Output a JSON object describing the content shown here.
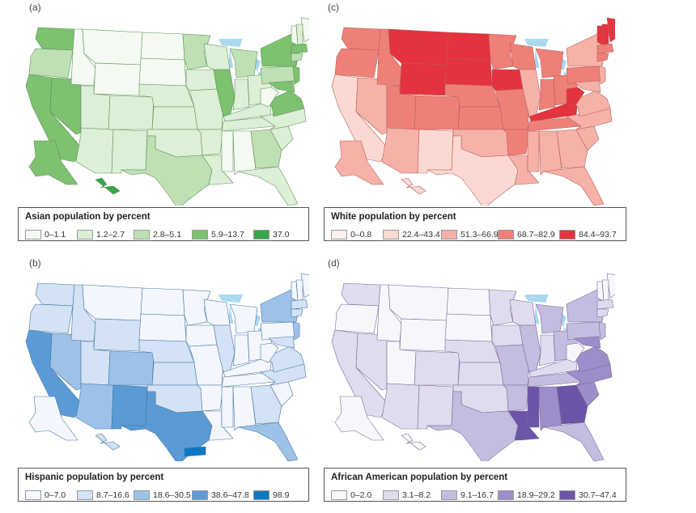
{
  "panels": [
    {
      "letter": "(a)",
      "legend_title": "Asian population by percent",
      "classes": [
        {
          "label": "0–1.1",
          "color": "#f4f9f2"
        },
        {
          "label": "1.2–2.7",
          "color": "#dcefd7"
        },
        {
          "label": "2.8–5.1",
          "color": "#bfe0b4"
        },
        {
          "label": "5.9–13.7",
          "color": "#7dc171"
        },
        {
          "label": "37.0",
          "color": "#38a54a"
        }
      ],
      "states": {
        "WA": 3,
        "OR": 2,
        "CA": 3,
        "NV": 3,
        "ID": 0,
        "MT": 0,
        "WY": 0,
        "UT": 1,
        "AZ": 1,
        "NM": 1,
        "CO": 1,
        "ND": 0,
        "SD": 0,
        "NE": 1,
        "KS": 1,
        "OK": 1,
        "TX": 2,
        "MN": 2,
        "IA": 1,
        "MO": 1,
        "AR": 1,
        "LA": 1,
        "WI": 1,
        "IL": 3,
        "MI": 2,
        "IN": 1,
        "OH": 1,
        "KY": 1,
        "TN": 1,
        "MS": 0,
        "AL": 0,
        "GA": 2,
        "FL": 1,
        "SC": 1,
        "NC": 1,
        "VA": 3,
        "WV": 0,
        "PA": 2,
        "NY": 3,
        "ME": 0,
        "NH": 1,
        "VT": 0,
        "MA": 3,
        "CT": 2,
        "NJ": 3,
        "MD": 3,
        "AK": 3,
        "HI": 4
      }
    },
    {
      "letter": "(c)",
      "legend_title": "White population by percent",
      "classes": [
        {
          "label": "0–0.8",
          "color": "#fdf0ec"
        },
        {
          "label": "22.4–43.4",
          "color": "#fbd9d2"
        },
        {
          "label": "51.3–66.9",
          "color": "#f6b1a8"
        },
        {
          "label": "68.7–82.9",
          "color": "#ef8078"
        },
        {
          "label": "84.4–93.7",
          "color": "#e4323f"
        }
      ],
      "states": {
        "WA": 3,
        "OR": 3,
        "CA": 1,
        "NV": 2,
        "ID": 3,
        "MT": 4,
        "WY": 4,
        "UT": 3,
        "AZ": 2,
        "NM": 1,
        "CO": 3,
        "ND": 4,
        "SD": 4,
        "NE": 3,
        "KS": 3,
        "OK": 2,
        "TX": 1,
        "MN": 3,
        "IA": 4,
        "MO": 3,
        "AR": 3,
        "LA": 2,
        "WI": 3,
        "IL": 2,
        "MI": 3,
        "IN": 3,
        "OH": 3,
        "KY": 4,
        "TN": 3,
        "MS": 2,
        "AL": 2,
        "GA": 2,
        "FL": 2,
        "SC": 2,
        "NC": 2,
        "VA": 2,
        "WV": 4,
        "PA": 3,
        "NY": 2,
        "ME": 4,
        "NH": 4,
        "VT": 4,
        "MA": 3,
        "CT": 3,
        "NJ": 2,
        "MD": 2,
        "AK": 2,
        "HI": 1
      }
    },
    {
      "letter": "(b)",
      "legend_title": "Hispanic population by percent",
      "classes": [
        {
          "label": "0–7.0",
          "color": "#f3f6fc"
        },
        {
          "label": "8.7–16.6",
          "color": "#d3e2f4"
        },
        {
          "label": "18.6–30.5",
          "color": "#9dc2e8"
        },
        {
          "label": "38.6–47.8",
          "color": "#5b9bd5"
        },
        {
          "label": "98.9",
          "color": "#0a78c2"
        }
      ],
      "states": {
        "WA": 1,
        "OR": 1,
        "CA": 3,
        "NV": 2,
        "ID": 1,
        "MT": 0,
        "WY": 1,
        "UT": 1,
        "AZ": 2,
        "NM": 3,
        "CO": 2,
        "ND": 0,
        "SD": 0,
        "NE": 1,
        "KS": 1,
        "OK": 1,
        "TX": 3,
        "MN": 0,
        "IA": 0,
        "MO": 0,
        "AR": 0,
        "LA": 0,
        "WI": 0,
        "IL": 1,
        "MI": 0,
        "IN": 0,
        "OH": 0,
        "KY": 0,
        "TN": 0,
        "MS": 0,
        "AL": 0,
        "GA": 1,
        "FL": 2,
        "SC": 0,
        "NC": 1,
        "VA": 1,
        "WV": 0,
        "PA": 0,
        "NY": 2,
        "ME": 0,
        "NH": 0,
        "VT": 0,
        "MA": 1,
        "CT": 1,
        "NJ": 2,
        "MD": 1,
        "AK": 0,
        "HI": 1,
        "PR": 4
      }
    },
    {
      "letter": "(d)",
      "legend_title": "African American population by percent",
      "classes": [
        {
          "label": "0–2.0",
          "color": "#f7f6fb"
        },
        {
          "label": "3.1–8.2",
          "color": "#e0dcee"
        },
        {
          "label": "9.1–16.7",
          "color": "#c4bde0"
        },
        {
          "label": "18.9–29.2",
          "color": "#9d8dc8"
        },
        {
          "label": "30.7–47.4",
          "color": "#6c54a8"
        }
      ],
      "states": {
        "WA": 1,
        "OR": 0,
        "CA": 1,
        "NV": 1,
        "ID": 0,
        "MT": 0,
        "WY": 0,
        "UT": 0,
        "AZ": 1,
        "NM": 1,
        "CO": 1,
        "ND": 0,
        "SD": 0,
        "NE": 1,
        "KS": 1,
        "OK": 1,
        "TX": 2,
        "MN": 1,
        "IA": 1,
        "MO": 2,
        "AR": 2,
        "LA": 4,
        "WI": 1,
        "IL": 2,
        "MI": 2,
        "IN": 1,
        "OH": 2,
        "KY": 1,
        "TN": 2,
        "MS": 4,
        "AL": 3,
        "GA": 4,
        "FL": 2,
        "SC": 3,
        "NC": 3,
        "VA": 3,
        "WV": 0,
        "PA": 2,
        "NY": 2,
        "ME": 0,
        "NH": 0,
        "VT": 0,
        "MA": 1,
        "CT": 1,
        "NJ": 2,
        "MD": 3,
        "AK": 0,
        "HI": 0
      }
    }
  ]
}
